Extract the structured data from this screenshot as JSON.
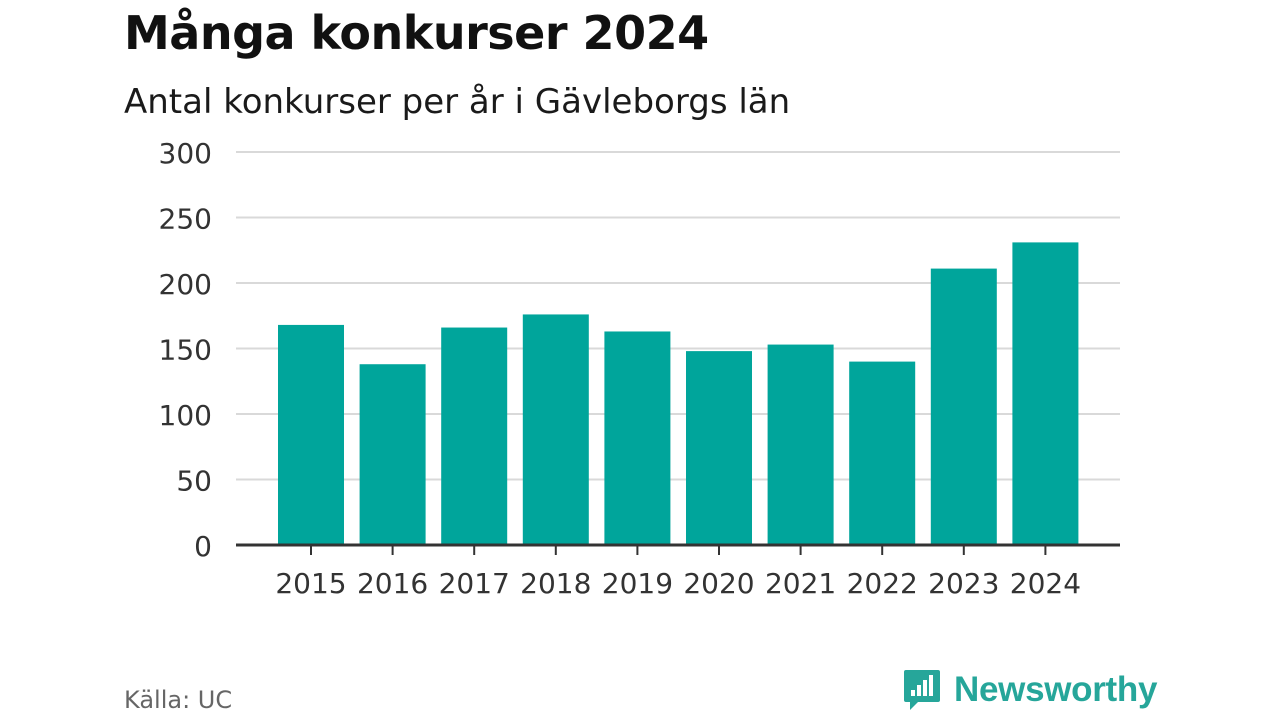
{
  "header": {
    "title": "Många konkurser 2024",
    "subtitle": "Antal konkurser per år i Gävleborgs län"
  },
  "footer": {
    "source": "Källa: UC",
    "brand": "Newsworthy",
    "brand_icon": "bar-chart-speech-bubble-icon"
  },
  "colors": {
    "bar": "#00a59b",
    "grid": "#d9d9d9",
    "axis": "#333333",
    "brand": "#26a69a"
  },
  "chart_data": {
    "type": "bar",
    "title": "Många konkurser 2024",
    "subtitle": "Antal konkurser per år i Gävleborgs län",
    "categories": [
      "2015",
      "2016",
      "2017",
      "2018",
      "2019",
      "2020",
      "2021",
      "2022",
      "2023",
      "2024"
    ],
    "values": [
      168,
      138,
      166,
      176,
      163,
      148,
      153,
      140,
      211,
      231
    ],
    "yticks": [
      0,
      50,
      100,
      150,
      200,
      250,
      300
    ],
    "ylim": [
      0,
      300
    ],
    "xlabel": "",
    "ylabel": "",
    "grid": true,
    "legend": false
  }
}
